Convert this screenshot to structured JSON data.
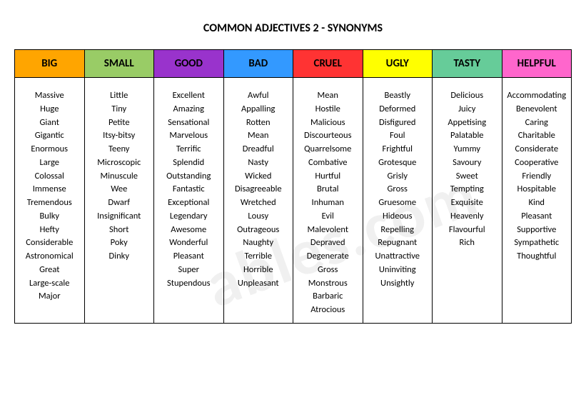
{
  "title": "COMMON ADJECTIVES 2 - SYNONYMS",
  "watermark": "ables.com",
  "columns": [
    {
      "header": "BIG",
      "bg": "#ffa500",
      "synonyms": [
        "Massive",
        "Huge",
        "Giant",
        "Gigantic",
        "Enormous",
        "Large",
        "Colossal",
        "Immense",
        "Tremendous",
        "Bulky",
        "Hefty",
        "Considerable",
        "Astronomical",
        "Great",
        "Large-scale",
        "Major"
      ]
    },
    {
      "header": "SMALL",
      "bg": "#99cc66",
      "synonyms": [
        "Little",
        "Tiny",
        "Petite",
        "Itsy-bitsy",
        "Teeny",
        "Microscopic",
        "Minuscule",
        "Wee",
        "Dwarf",
        "Insignificant",
        "Short",
        "Poky",
        "Dinky"
      ]
    },
    {
      "header": "GOOD",
      "bg": "#9933cc",
      "synonyms": [
        "Excellent",
        "Amazing",
        "Sensational",
        "Marvelous",
        "Terrific",
        "Splendid",
        "Outstanding",
        "Fantastic",
        "Exceptional",
        "Legendary",
        "Awesome",
        "Wonderful",
        "Pleasant",
        "Super",
        "Stupendous"
      ]
    },
    {
      "header": "BAD",
      "bg": "#3399ff",
      "synonyms": [
        "Awful",
        "Appalling",
        "Rotten",
        "Mean",
        "Dreadful",
        "Nasty",
        "Wicked",
        "Disagreeable",
        "Wretched",
        "Lousy",
        "Outrageous",
        "Naughty",
        "Terrible",
        "Horrible",
        "Unpleasant"
      ]
    },
    {
      "header": "CRUEL",
      "bg": "#ff3333",
      "synonyms": [
        "Mean",
        "Hostile",
        "Malicious",
        "Discourteous",
        "Quarrelsome",
        "Combative",
        "Hurtful",
        "Brutal",
        "Inhuman",
        "Evil",
        "Malevolent",
        "Depraved",
        "Degenerate",
        "Gross",
        "Monstrous",
        "Barbaric",
        "Atrocious"
      ]
    },
    {
      "header": "UGLY",
      "bg": "#ffff00",
      "synonyms": [
        "Beastly",
        "Deformed",
        "Disfigured",
        "Foul",
        "Frightful",
        "Grotesque",
        "Grisly",
        "Gross",
        "Gruesome",
        "Hideous",
        "Repelling",
        "Repugnant",
        "Unattractive",
        "Uninviting",
        "Unsightly"
      ]
    },
    {
      "header": "TASTY",
      "bg": "#66cc99",
      "synonyms": [
        "Delicious",
        "Juicy",
        "Appetising",
        "Palatable",
        "Yummy",
        "Savoury",
        "Sweet",
        "Tempting",
        "Exquisite",
        "Heavenly",
        "Flavourful",
        "Rich"
      ]
    },
    {
      "header": "HELPFUL",
      "bg": "#ff66cc",
      "synonyms": [
        "Accommodating",
        "Benevolent",
        "Caring",
        "Charitable",
        "Considerate",
        "Cooperative",
        "Friendly",
        "Hospitable",
        "Kind",
        "Pleasant",
        "Supportive",
        "Sympathetic",
        "Thoughtful"
      ]
    }
  ]
}
